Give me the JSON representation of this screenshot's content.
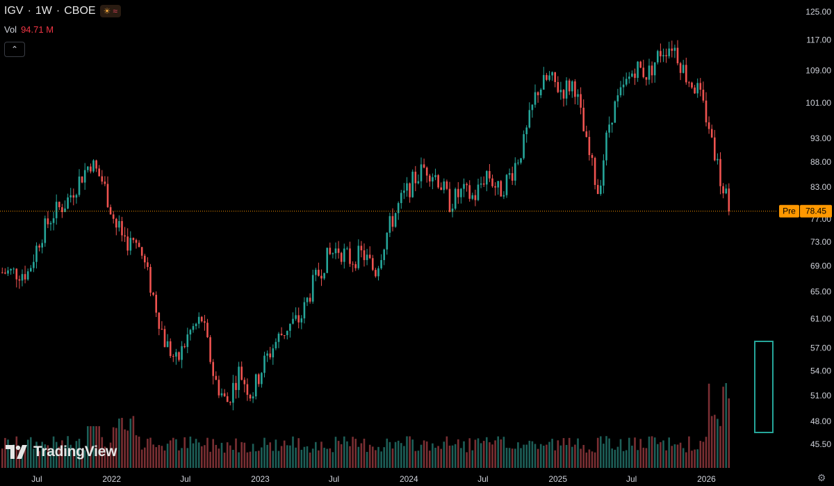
{
  "header": {
    "symbol": "IGV",
    "interval": "1W",
    "exchange": "CBOE",
    "separator": "·",
    "sun_icon": "sun-icon",
    "wave_icon": "wave-icon"
  },
  "volume": {
    "label": "Vol",
    "value": "94.71 M"
  },
  "collapse_icon": "chevron-up-icon",
  "logo_text": "TradingView",
  "price_tag": {
    "label": "Pre",
    "value": "78.45",
    "color": "#ff9800"
  },
  "colors": {
    "up": "#26a69a",
    "down": "#ef5350",
    "background": "#000000"
  },
  "chart_data": {
    "type": "candlestick",
    "y_axis": {
      "ticks": [
        "125.00",
        "117.00",
        "109.00",
        "101.00",
        "93.00",
        "88.00",
        "83.00",
        "77.00",
        "73.00",
        "69.00",
        "65.00",
        "61.00",
        "57.00",
        "54.00",
        "51.00",
        "48.00",
        "45.50"
      ],
      "scale": "log"
    },
    "x_axis": {
      "ticks": [
        "Jul",
        "2022",
        "Jul",
        "2023",
        "Jul",
        "2024",
        "Jul",
        "2025",
        "Jul",
        "2026"
      ]
    },
    "current_price": 78.45,
    "highlight": "volume-spike-box",
    "series_points": [
      [
        "2021-06",
        68
      ],
      [
        "2021-07",
        74
      ],
      [
        "2021-08",
        78
      ],
      [
        "2021-09",
        80
      ],
      [
        "2021-10",
        84
      ],
      [
        "2021-11",
        88
      ],
      [
        "2021-12",
        84
      ],
      [
        "2022-01",
        76
      ],
      [
        "2022-02",
        73
      ],
      [
        "2022-03",
        72
      ],
      [
        "2022-04",
        65
      ],
      [
        "2022-05",
        58
      ],
      [
        "2022-06",
        55
      ],
      [
        "2022-07",
        59
      ],
      [
        "2022-08",
        61
      ],
      [
        "2022-09",
        53
      ],
      [
        "2022-10",
        50
      ],
      [
        "2022-11",
        54
      ],
      [
        "2022-12",
        51
      ],
      [
        "2023-01",
        55
      ],
      [
        "2023-02",
        58
      ],
      [
        "2023-03",
        60
      ],
      [
        "2023-04",
        61
      ],
      [
        "2023-05",
        66
      ],
      [
        "2023-06",
        70
      ],
      [
        "2023-07",
        72
      ],
      [
        "2023-08",
        70
      ],
      [
        "2023-09",
        71
      ],
      [
        "2023-10",
        68
      ],
      [
        "2023-11",
        75
      ],
      [
        "2023-12",
        80
      ],
      [
        "2024-01",
        84
      ],
      [
        "2024-02",
        87
      ],
      [
        "2024-03",
        85
      ],
      [
        "2024-04",
        80
      ],
      [
        "2024-05",
        82
      ],
      [
        "2024-06",
        81
      ],
      [
        "2024-07",
        86
      ],
      [
        "2024-08",
        82
      ],
      [
        "2024-09",
        86
      ],
      [
        "2024-10",
        92
      ],
      [
        "2024-11",
        104
      ],
      [
        "2024-12",
        107
      ],
      [
        "2025-01",
        104
      ],
      [
        "2025-02",
        106
      ],
      [
        "2025-03",
        92
      ],
      [
        "2025-04",
        82
      ],
      [
        "2025-05",
        98
      ],
      [
        "2025-06",
        104
      ],
      [
        "2025-07",
        110
      ],
      [
        "2025-08",
        108
      ],
      [
        "2025-09",
        114
      ],
      [
        "2025-10",
        116
      ],
      [
        "2025-11",
        108
      ],
      [
        "2025-12",
        104
      ],
      [
        "2026-01",
        95
      ],
      [
        "2026-02",
        82
      ],
      [
        "2026-03",
        78.45
      ]
    ]
  }
}
